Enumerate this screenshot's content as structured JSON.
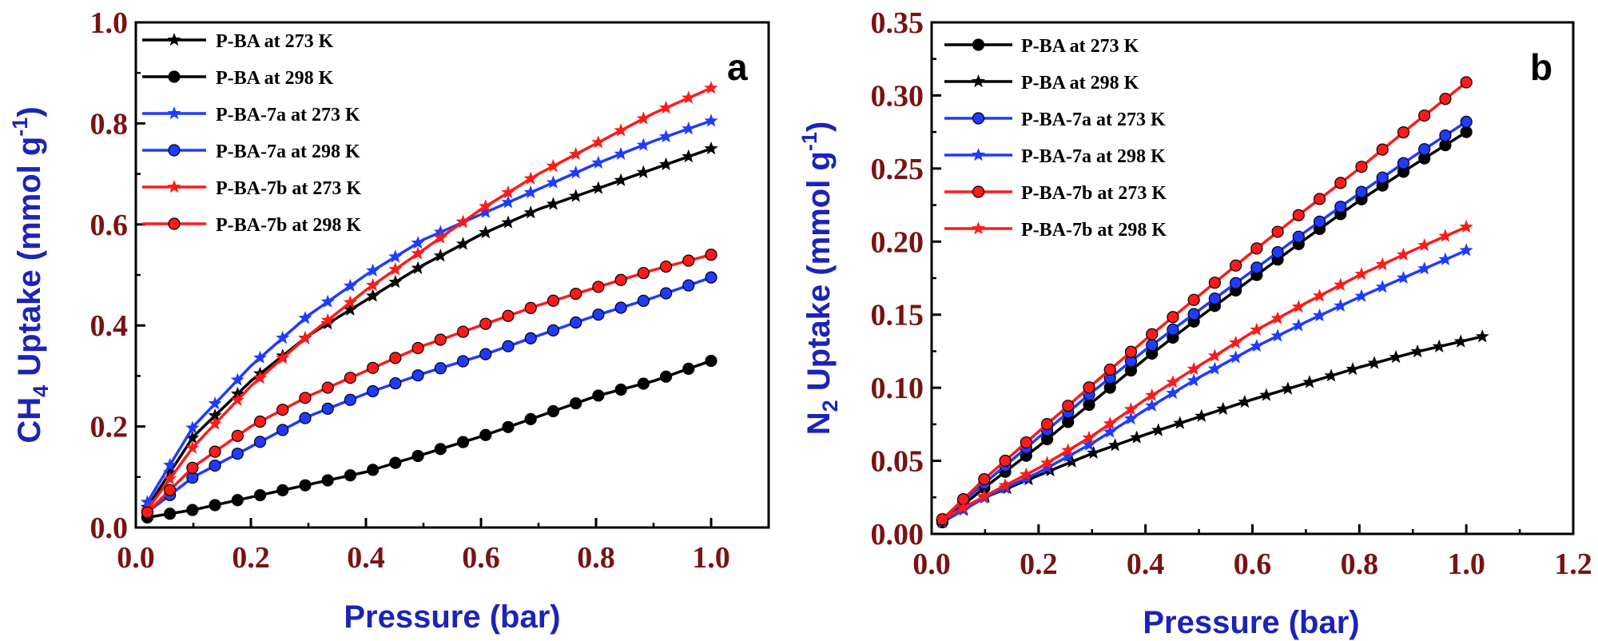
{
  "colors": {
    "tick": "#7a1212",
    "axis_title": "#1c23b8",
    "frame": "#000000",
    "series": {
      "black": "#000000",
      "blue": "#1f3bff",
      "red": "#ff1a1a"
    }
  },
  "chart_data": [
    {
      "type": "line",
      "panel_label": "a",
      "title": "",
      "xlabel": "Pressure (bar)",
      "ylabel": {
        "pre": "CH",
        "sub": "4",
        "post": " Uptake (mmol g",
        "sup": "-1",
        "end": ")"
      },
      "xlim": [
        0.0,
        1.1
      ],
      "ylim": [
        0.0,
        1.0
      ],
      "xticks": [
        "0.0",
        "0.2",
        "0.4",
        "0.6",
        "0.8",
        "1.0"
      ],
      "yticks": [
        "0.0",
        "0.2",
        "0.4",
        "0.6",
        "0.8",
        "1.0"
      ],
      "legend_position": "top-left",
      "series": [
        {
          "name": "P-BA at 273 K",
          "color": "black",
          "marker": "star",
          "x": [
            0.02,
            0.1,
            0.2,
            0.3,
            0.4,
            0.5,
            0.6,
            0.7,
            0.8,
            0.9,
            1.0
          ],
          "y": [
            0.04,
            0.18,
            0.29,
            0.38,
            0.45,
            0.52,
            0.58,
            0.63,
            0.67,
            0.71,
            0.75
          ]
        },
        {
          "name": "P-BA at 298 K",
          "color": "black",
          "marker": "circle",
          "x": [
            0.02,
            0.1,
            0.2,
            0.3,
            0.4,
            0.5,
            0.6,
            0.7,
            0.8,
            0.9,
            1.0
          ],
          "y": [
            0.02,
            0.035,
            0.06,
            0.085,
            0.11,
            0.145,
            0.18,
            0.22,
            0.26,
            0.29,
            0.33
          ]
        },
        {
          "name": "P-BA-7a at 273 K",
          "color": "blue",
          "marker": "star",
          "x": [
            0.02,
            0.1,
            0.2,
            0.3,
            0.4,
            0.5,
            0.6,
            0.7,
            0.8,
            0.9,
            1.0
          ],
          "y": [
            0.05,
            0.2,
            0.32,
            0.42,
            0.5,
            0.57,
            0.62,
            0.67,
            0.72,
            0.765,
            0.805
          ]
        },
        {
          "name": "P-BA-7a at 298 K",
          "color": "blue",
          "marker": "circle",
          "x": [
            0.02,
            0.1,
            0.2,
            0.3,
            0.4,
            0.5,
            0.6,
            0.7,
            0.8,
            0.9,
            1.0
          ],
          "y": [
            0.03,
            0.1,
            0.16,
            0.22,
            0.265,
            0.305,
            0.34,
            0.38,
            0.42,
            0.455,
            0.495
          ]
        },
        {
          "name": "P-BA-7b at 273 K",
          "color": "red",
          "marker": "star",
          "x": [
            0.02,
            0.1,
            0.2,
            0.3,
            0.4,
            0.5,
            0.6,
            0.7,
            0.8,
            0.9,
            1.0
          ],
          "y": [
            0.035,
            0.16,
            0.28,
            0.38,
            0.47,
            0.55,
            0.63,
            0.7,
            0.76,
            0.82,
            0.87
          ]
        },
        {
          "name": "P-BA-7b at 298 K",
          "color": "red",
          "marker": "circle",
          "x": [
            0.02,
            0.1,
            0.2,
            0.3,
            0.4,
            0.5,
            0.6,
            0.7,
            0.8,
            0.9,
            1.0
          ],
          "y": [
            0.03,
            0.12,
            0.2,
            0.26,
            0.31,
            0.36,
            0.4,
            0.44,
            0.475,
            0.51,
            0.54
          ]
        }
      ]
    },
    {
      "type": "line",
      "panel_label": "b",
      "title": "",
      "xlabel": "Pressure (bar)",
      "ylabel": {
        "pre": "N",
        "sub": "2",
        "post": " Uptake (mmol g",
        "sup": "-1",
        "end": ")"
      },
      "xlim": [
        0.0,
        1.2
      ],
      "ylim": [
        0.0,
        0.35
      ],
      "xticks": [
        "0.0",
        "0.2",
        "0.4",
        "0.6",
        "0.8",
        "1.0",
        "1.2"
      ],
      "yticks": [
        "0.00",
        "0.05",
        "0.10",
        "0.15",
        "0.20",
        "0.25",
        "0.30",
        "0.35"
      ],
      "legend_position": "top-left",
      "series": [
        {
          "name": "P-BA at 273 K",
          "color": "black",
          "marker": "circle",
          "x": [
            0.02,
            0.1,
            0.2,
            0.3,
            0.4,
            0.5,
            0.6,
            0.7,
            0.8,
            0.9,
            1.0
          ],
          "y": [
            0.008,
            0.032,
            0.06,
            0.09,
            0.12,
            0.148,
            0.175,
            0.202,
            0.228,
            0.252,
            0.275
          ]
        },
        {
          "name": "P-BA at 298 K",
          "color": "black",
          "marker": "star",
          "x": [
            0.02,
            0.1,
            0.2,
            0.3,
            0.4,
            0.5,
            0.6,
            0.7,
            0.8,
            0.9,
            1.03
          ],
          "y": [
            0.008,
            0.025,
            0.04,
            0.055,
            0.068,
            0.08,
            0.092,
            0.103,
            0.114,
            0.124,
            0.135
          ]
        },
        {
          "name": "P-BA-7a at 273 K",
          "color": "blue",
          "marker": "circle",
          "x": [
            0.02,
            0.1,
            0.2,
            0.3,
            0.4,
            0.5,
            0.6,
            0.7,
            0.8,
            0.9,
            1.0
          ],
          "y": [
            0.01,
            0.035,
            0.066,
            0.097,
            0.126,
            0.153,
            0.18,
            0.207,
            0.233,
            0.258,
            0.282
          ]
        },
        {
          "name": "P-BA-7a at 298 K",
          "color": "blue",
          "marker": "star",
          "x": [
            0.02,
            0.1,
            0.2,
            0.3,
            0.4,
            0.5,
            0.6,
            0.7,
            0.8,
            0.9,
            1.0
          ],
          "y": [
            0.008,
            0.025,
            0.042,
            0.062,
            0.085,
            0.107,
            0.127,
            0.145,
            0.162,
            0.178,
            0.194
          ]
        },
        {
          "name": "P-BA-7b at 273 K",
          "color": "red",
          "marker": "circle",
          "x": [
            0.02,
            0.1,
            0.2,
            0.3,
            0.4,
            0.5,
            0.6,
            0.7,
            0.8,
            0.9,
            1.0
          ],
          "y": [
            0.01,
            0.038,
            0.07,
            0.102,
            0.133,
            0.163,
            0.193,
            0.222,
            0.25,
            0.28,
            0.309
          ]
        },
        {
          "name": "P-BA-7b at 298 K",
          "color": "red",
          "marker": "star",
          "x": [
            0.02,
            0.1,
            0.2,
            0.3,
            0.4,
            0.5,
            0.6,
            0.7,
            0.8,
            0.9,
            1.0
          ],
          "y": [
            0.01,
            0.026,
            0.045,
            0.067,
            0.092,
            0.115,
            0.138,
            0.158,
            0.177,
            0.194,
            0.21
          ]
        }
      ]
    }
  ]
}
